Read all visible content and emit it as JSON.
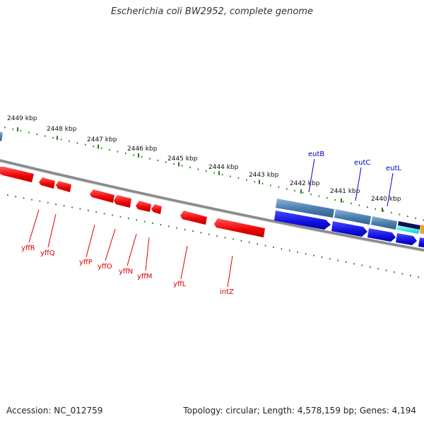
{
  "title": "Escherichia coli BW2952, complete genome",
  "footer": {
    "accession": "Accession: NC_012759",
    "summary": "Topology: circular; Length: 4,578,159 bp; Genes: 4,194"
  },
  "ticks": [
    "2449 kbp",
    "2448 kbp",
    "2447 kbp",
    "2446 kbp",
    "2445 kbp",
    "2444 kbp",
    "2443 kbp",
    "2442 kbp",
    "2441 kbp",
    "2440 kbp"
  ],
  "reverse_genes": [
    "yffR",
    "yffQ",
    "yffP",
    "yffO",
    "yffN",
    "yffM",
    "yffL",
    "intZ"
  ],
  "forward_genes": [
    "eutB",
    "eutC",
    "eutL"
  ],
  "colors": {
    "reverse_strand": "#ee0000",
    "forward_strand": "#1111dd",
    "feature_block": "#4a80b0",
    "tick": "#2a7a1a",
    "backbone": "#888888"
  }
}
